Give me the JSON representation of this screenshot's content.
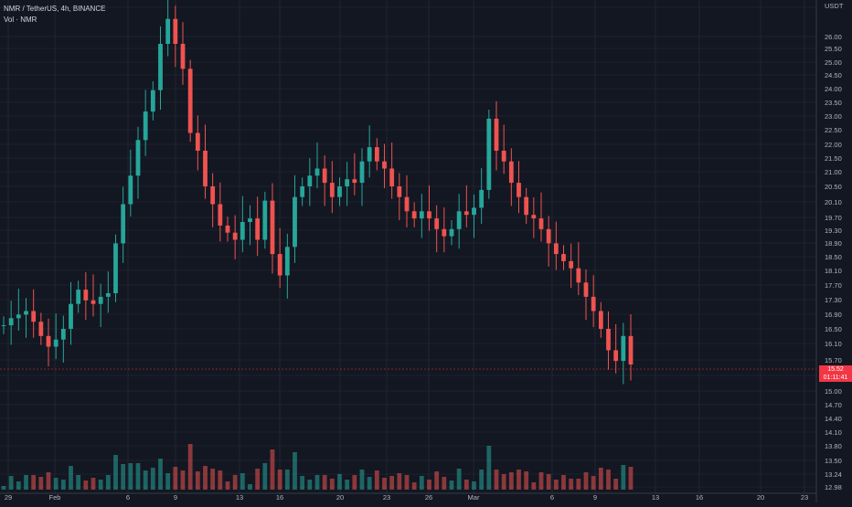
{
  "header": {
    "symbol_line": "NMR / TetherUS, 4h, BINANCE",
    "volume_label": "Vol · NMR",
    "currency": "USDT"
  },
  "last_price": {
    "price": "15.52",
    "countdown": "01:11:41",
    "color": "#f23645"
  },
  "colors": {
    "background": "#131722",
    "up": "#26a69a",
    "down": "#ef5350",
    "grid": "#2a2e39",
    "text": "#b2b5be"
  },
  "chart_data": {
    "type": "candlestick",
    "y_axis": {
      "ticks": [
        "27.00",
        "26.00",
        "25.50",
        "25.00",
        "24.50",
        "24.00",
        "23.50",
        "23.00",
        "22.50",
        "22.00",
        "21.50",
        "21.00",
        "20.50",
        "20.10",
        "19.70",
        "19.30",
        "18.90",
        "18.50",
        "18.10",
        "17.70",
        "17.30",
        "16.90",
        "16.50",
        "16.10",
        "15.70",
        "15.30",
        "15.00",
        "14.70",
        "14.40",
        "14.10",
        "13.80",
        "13.50",
        "13.24",
        "12.98"
      ]
    },
    "x_axis": {
      "ticks": [
        "29",
        "Feb",
        "6",
        "9",
        "13",
        "16",
        "20",
        "23",
        "26",
        "Mar",
        "6",
        "9",
        "13",
        "16",
        "20",
        "23"
      ]
    },
    "candles_note": "approximate close prices sampled along the visible series",
    "close_path": [
      16.6,
      16.8,
      16.9,
      17.0,
      16.7,
      16.3,
      16.0,
      16.2,
      16.5,
      17.2,
      17.6,
      17.3,
      17.2,
      17.4,
      17.5,
      18.9,
      20.0,
      20.8,
      21.8,
      22.6,
      23.2,
      24.5,
      25.2,
      24.5,
      23.8,
      22.0,
      21.5,
      20.5,
      20.0,
      19.4,
      19.2,
      19.0,
      19.5,
      19.6,
      19.0,
      20.1,
      18.6,
      18.0,
      18.8,
      20.2,
      20.5,
      20.8,
      21.0,
      20.6,
      20.2,
      20.5,
      20.7,
      20.6,
      21.2,
      21.6,
      21.2,
      21.0,
      20.5,
      20.2,
      19.8,
      19.6,
      19.8,
      19.6,
      19.3,
      19.1,
      19.3,
      19.8,
      19.7,
      19.9,
      20.4,
      22.4,
      21.5,
      21.2,
      20.6,
      20.2,
      19.7,
      19.6,
      19.3,
      18.9,
      18.6,
      18.4,
      18.2,
      17.8,
      17.4,
      17.0,
      16.5,
      15.9,
      15.6,
      16.3,
      15.5
    ]
  }
}
